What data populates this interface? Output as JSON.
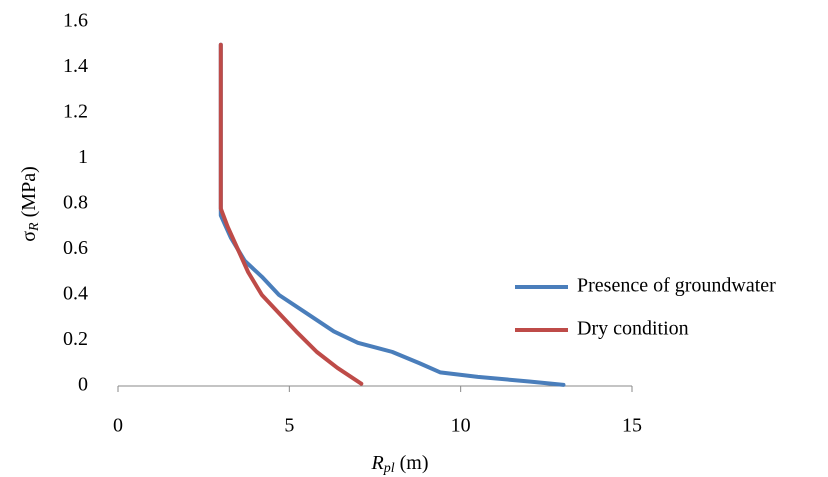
{
  "chart_data": {
    "type": "line",
    "x_label": {
      "symbol": "R",
      "subscript": "pl",
      "unit": "(m)"
    },
    "y_label": {
      "symbol": "σ",
      "subscript": "R",
      "unit": "(MPa)"
    },
    "xlim": [
      0,
      15
    ],
    "xticks": [
      0,
      5,
      10,
      15
    ],
    "ylim": [
      0,
      1.6
    ],
    "yticks": [
      0,
      0.2,
      0.4,
      0.6,
      0.8,
      1,
      1.2,
      1.4,
      1.6
    ],
    "grid": false,
    "legend": "right",
    "series": [
      {
        "name": "Presence of groundwater",
        "color": "#4a7ebb",
        "x": [
          3.0,
          3.0,
          3.3,
          3.7,
          4.2,
          4.7,
          5.5,
          6.3,
          7.0,
          8.0,
          8.8,
          9.4,
          10.5,
          12.0,
          13.0
        ],
        "values": [
          1.5,
          0.75,
          0.65,
          0.55,
          0.48,
          0.4,
          0.32,
          0.24,
          0.19,
          0.15,
          0.1,
          0.06,
          0.04,
          0.02,
          0.005
        ]
      },
      {
        "name": "Dry condition",
        "color": "#be4b48",
        "x": [
          3.0,
          3.0,
          3.2,
          3.5,
          3.8,
          4.2,
          4.7,
          5.2,
          5.8,
          6.4,
          7.1
        ],
        "values": [
          1.5,
          0.78,
          0.7,
          0.6,
          0.5,
          0.4,
          0.32,
          0.24,
          0.15,
          0.08,
          0.01
        ]
      }
    ]
  }
}
